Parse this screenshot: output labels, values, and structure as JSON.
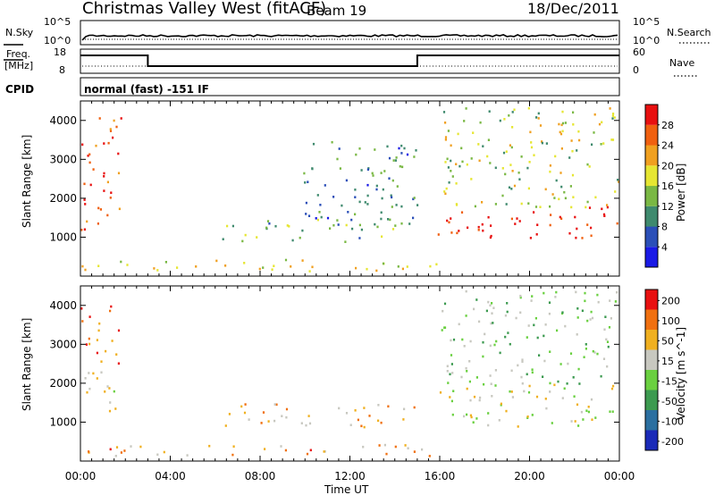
{
  "header": {
    "title": "Christmas Valley West (fitACF)",
    "beam": "Beam 19",
    "date": "18/Dec/2011"
  },
  "noise_panel": {
    "left_label": "N.Sky",
    "right_label": "N.Search",
    "left_ticks": [
      "10^5",
      "10^0"
    ],
    "right_ticks": [
      "10^5",
      "10^0"
    ]
  },
  "freq_panel": {
    "left_label_line1": "Freq.",
    "left_label_line2": "[MHz]",
    "right_label": "Nave",
    "left_ticks": [
      "18",
      "8"
    ],
    "right_ticks": [
      "60",
      "0"
    ],
    "freq_steps": [
      {
        "from": "00:00",
        "to": "03:00",
        "mhz": 18
      },
      {
        "from": "03:00",
        "to": "15:00",
        "mhz": 8
      },
      {
        "from": "15:00",
        "to": "24:00",
        "mhz": 18
      }
    ]
  },
  "cpid_panel": {
    "label": "CPID",
    "text": "normal (fast) -151 IF"
  },
  "chart_data": [
    {
      "type": "heatmap",
      "name": "power",
      "ylabel": "Slant Range [km]",
      "xlim": [
        "00:00",
        "24:00"
      ],
      "ylim": [
        0,
        4500
      ],
      "yticks": [
        "1000",
        "2000",
        "3000",
        "4000"
      ],
      "colorbar_label": "Power [dB]",
      "colorbar_ticks": [
        "4",
        "8",
        "12",
        "16",
        "20",
        "24",
        "28"
      ],
      "colors": [
        "#1a1ae6",
        "#2b4fb8",
        "#3f8a6e",
        "#7ab844",
        "#e6e632",
        "#f0a020",
        "#f06010",
        "#e81010"
      ],
      "scatter_regions": [
        {
          "t0": 0.0,
          "t1": 1.8,
          "r0": 1200,
          "r1": 4100,
          "level": 6.5
        },
        {
          "t0": 6.3,
          "t1": 15.0,
          "r0": 900,
          "r1": 1500,
          "level": 2.5
        },
        {
          "t0": 9.8,
          "t1": 15.0,
          "r0": 1400,
          "r1": 3600,
          "level": 1.8
        },
        {
          "t0": 15.9,
          "t1": 24.0,
          "r0": 1000,
          "r1": 1800,
          "level": 7.0
        },
        {
          "t0": 15.9,
          "t1": 24.0,
          "r0": 1800,
          "r1": 4400,
          "level": 3.5
        },
        {
          "t0": 0.0,
          "t1": 16.0,
          "r0": 150,
          "r1": 450,
          "level": 4.0
        }
      ]
    },
    {
      "type": "heatmap",
      "name": "velocity",
      "xlabel": "Time UT",
      "ylabel": "Slant Range [km]",
      "xlim": [
        "00:00",
        "24:00"
      ],
      "ylim": [
        0,
        4500
      ],
      "xticks": [
        "00:00",
        "04:00",
        "08:00",
        "12:00",
        "16:00",
        "20:00",
        "00:00"
      ],
      "yticks": [
        "1000",
        "2000",
        "3000",
        "4000"
      ],
      "colorbar_label": "Velocity [m s^-1]",
      "colorbar_ticks": [
        "200",
        "100",
        "50",
        "15",
        "-15",
        "-50",
        "-100",
        "-200"
      ],
      "colors": [
        "#1a2ab8",
        "#2b6fa0",
        "#3c9a50",
        "#6ad040",
        "#c8c8c0",
        "#f0b020",
        "#f07010",
        "#e81010"
      ],
      "scatter_regions": [
        {
          "t0": 0.0,
          "t1": 1.8,
          "r0": 1200,
          "r1": 2400,
          "level": 4.0
        },
        {
          "t0": 0.0,
          "t1": 1.8,
          "r0": 2500,
          "r1": 4000,
          "level": 6.0
        },
        {
          "t0": 6.3,
          "t1": 15.0,
          "r0": 900,
          "r1": 1500,
          "level": 5.0
        },
        {
          "t0": 15.9,
          "t1": 24.0,
          "r0": 900,
          "r1": 2000,
          "level": 4.0
        },
        {
          "t0": 15.9,
          "t1": 24.0,
          "r0": 2000,
          "r1": 4400,
          "level": 3.0
        },
        {
          "t0": 0.0,
          "t1": 16.0,
          "r0": 150,
          "r1": 450,
          "level": 5.2
        }
      ]
    }
  ]
}
